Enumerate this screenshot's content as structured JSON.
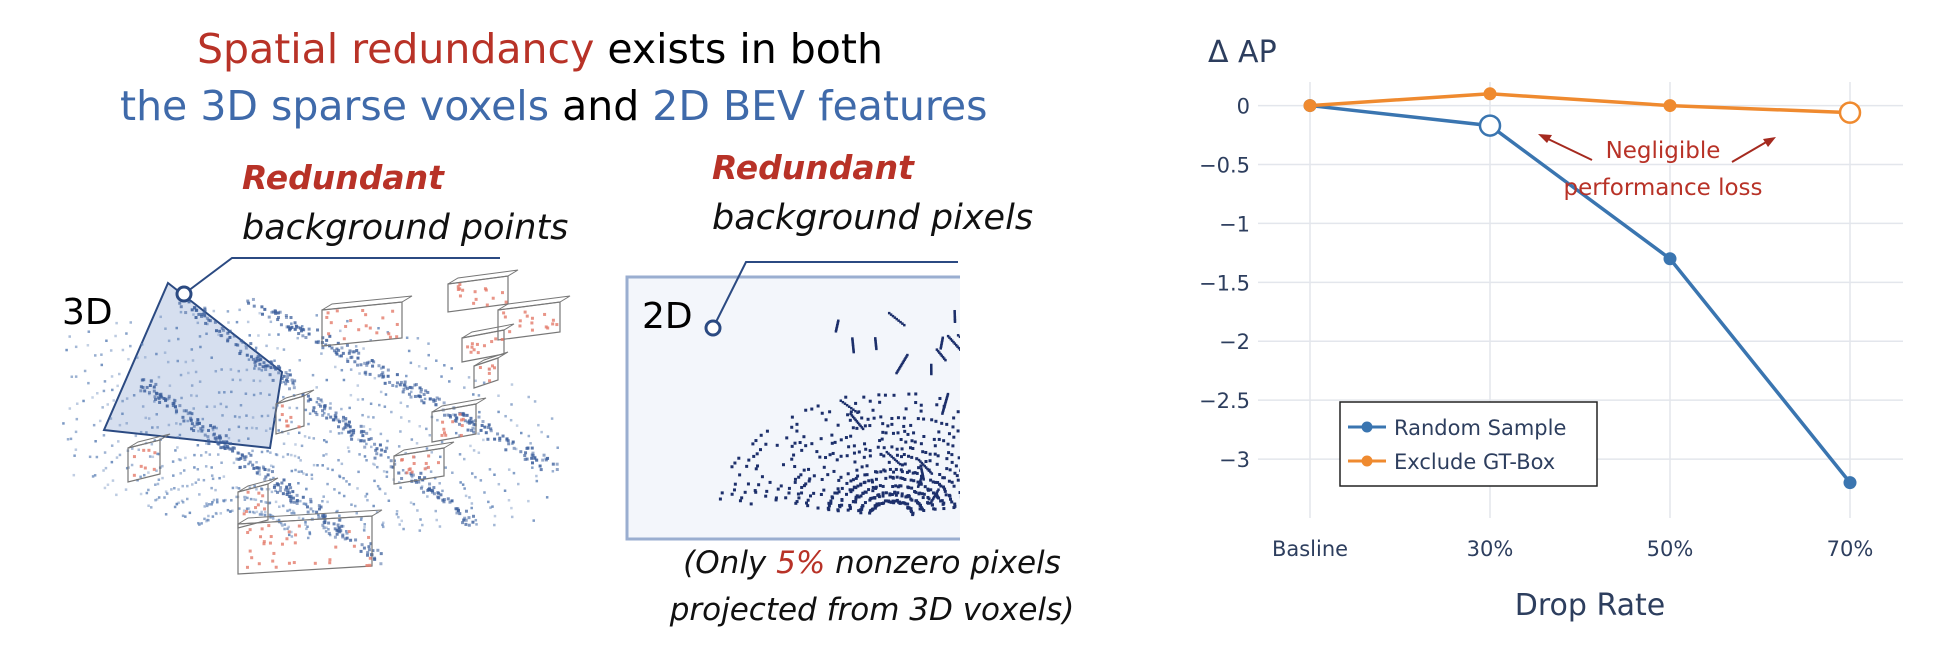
{
  "headline": {
    "part1_red": "Spatial redundancy",
    "part1_rest": " exists in both",
    "part2_blue_a": "the 3D sparse voxels",
    "part2_mid": " and ",
    "part2_blue_b": "2D BEV features"
  },
  "panel_3d": {
    "redundant_label": "Redundant",
    "background_label": "background points",
    "dim_label": "3D"
  },
  "panel_2d": {
    "redundant_label": "Redundant",
    "background_label": "background pixels",
    "dim_label": "2D",
    "caption_pre": "(Only ",
    "caption_pct": "5%",
    "caption_post": " nonzero pixels",
    "caption_line2": "projected from 3D voxels)"
  },
  "colors": {
    "accent_red": "#b83227",
    "accent_blue": "#3f6aaa",
    "series_random": "#3a75b0",
    "series_exclude": "#ef8a2f",
    "bev_points": "#1c2f6b",
    "voxel_points": "#5b7fb5"
  },
  "chart_data": {
    "type": "line",
    "categories": [
      "Basline",
      "30%",
      "50%",
      "70%"
    ],
    "ylabel": "Δ AP",
    "xlabel": "Drop Rate",
    "ylim": [
      -3.5,
      0.2
    ],
    "yticks": [
      0,
      -0.5,
      -1,
      -1.5,
      -2,
      -2.5,
      -3
    ],
    "ytick_labels": [
      "0",
      "−0.5",
      "−1",
      "−1.5",
      "−2",
      "−2.5",
      "−3"
    ],
    "grid": true,
    "legend_position": "bottom-left",
    "series": [
      {
        "name": "Random Sample",
        "color": "#3a75b0",
        "values": [
          0,
          -0.17,
          -1.3,
          -3.2
        ]
      },
      {
        "name": "Exclude GT-Box",
        "color": "#ef8a2f",
        "values": [
          0,
          0.1,
          0,
          -0.06
        ]
      }
    ],
    "annotation": {
      "line1": "Negligible",
      "line2": "performance loss"
    }
  }
}
